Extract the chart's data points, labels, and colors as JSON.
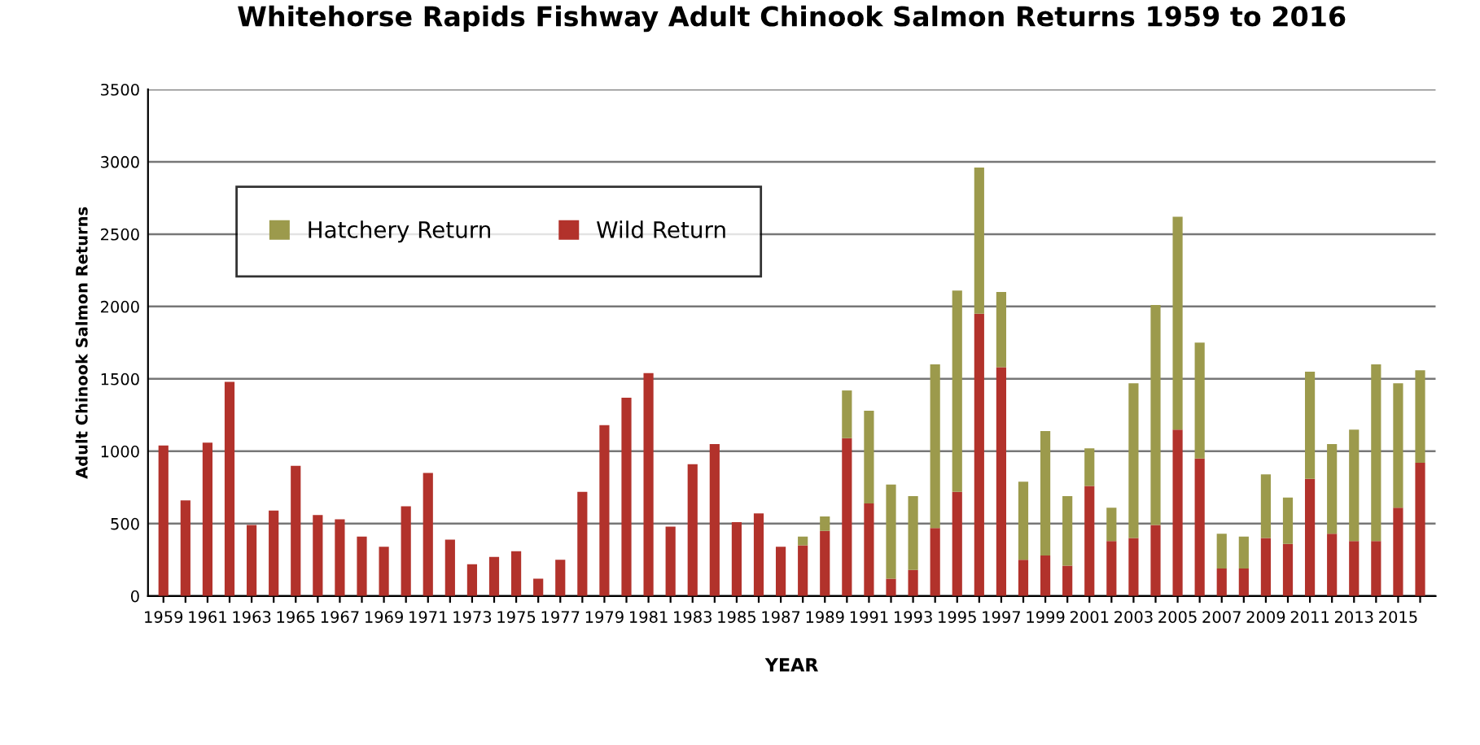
{
  "chart_data": {
    "type": "bar",
    "title": "Whitehorse Rapids Fishway Adult Chinook Salmon Returns 1959 to 2016",
    "xlabel": "YEAR",
    "ylabel": "Adult Chinook Salmon Returns",
    "categories": [
      "1959",
      null,
      "1961",
      null,
      "1963",
      null,
      "1965",
      null,
      "1967",
      null,
      "1969",
      null,
      "1971",
      null,
      "1973",
      null,
      "1975",
      null,
      "1977",
      null,
      "1979",
      null,
      "1981",
      null,
      "1983",
      null,
      "1985",
      null,
      "1987",
      null,
      "1989",
      null,
      "1991",
      null,
      "1993",
      null,
      "1995",
      null,
      "1997",
      null,
      "1999",
      null,
      "2001",
      null,
      "2003",
      null,
      "2005",
      null,
      "2007",
      null,
      "2009",
      null,
      "2011",
      null,
      "2013",
      null,
      "2015",
      null
    ],
    "stacked": true,
    "series": [
      {
        "name": "Wild Return",
        "color": "#b2322b",
        "values": [
          1040,
          660,
          1060,
          1480,
          490,
          590,
          900,
          560,
          530,
          410,
          340,
          620,
          850,
          390,
          220,
          270,
          310,
          120,
          250,
          720,
          1180,
          1370,
          1540,
          480,
          910,
          1050,
          510,
          570,
          340,
          350,
          450,
          1090,
          640,
          120,
          180,
          470,
          720,
          1950,
          1580,
          250,
          280,
          210,
          760,
          380,
          400,
          490,
          1150,
          950,
          190,
          190,
          400,
          360,
          810,
          430,
          380,
          380,
          610,
          920
        ]
      },
      {
        "name": "Hatchery Return",
        "color": "#9c9a4c",
        "values": [
          null,
          null,
          null,
          null,
          null,
          null,
          null,
          null,
          null,
          null,
          null,
          null,
          null,
          null,
          null,
          null,
          null,
          null,
          null,
          null,
          null,
          null,
          null,
          null,
          null,
          null,
          null,
          null,
          null,
          60,
          100,
          330,
          640,
          650,
          510,
          1130,
          1390,
          1010,
          520,
          540,
          860,
          480,
          260,
          230,
          1070,
          1520,
          1470,
          800,
          240,
          220,
          440,
          320,
          740,
          620,
          770,
          1220,
          860,
          640
        ]
      }
    ],
    "ylim": [
      0,
      3500
    ],
    "yticks": [
      0,
      500,
      1000,
      1500,
      2000,
      2500,
      3000,
      3500
    ],
    "grid": "y",
    "legend": "top left"
  }
}
